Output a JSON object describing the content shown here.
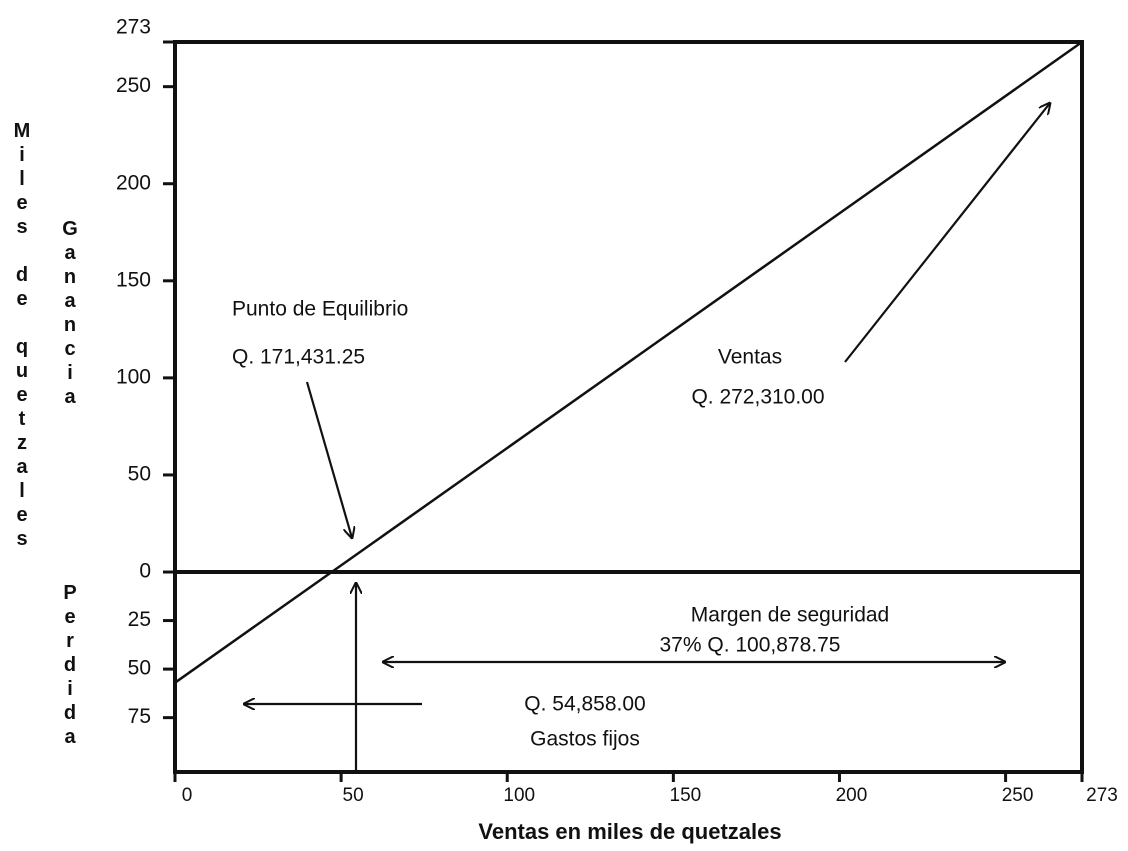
{
  "chart_data": {
    "type": "line",
    "x_label": "Ventas en miles de quetzales",
    "y_label": "Miles de quetzales",
    "y_upper_label": "Ganancia",
    "y_lower_label": "Perdida",
    "x": [
      0,
      273
    ],
    "values": [
      -57,
      273
    ],
    "color": "#111111",
    "xlim": [
      0,
      273
    ],
    "xticks": [
      0,
      50,
      100,
      150,
      200,
      250,
      273
    ],
    "ylim": [
      -103,
      273
    ],
    "yticks": [
      {
        "value": -75,
        "label": "75"
      },
      {
        "value": -50,
        "label": "50"
      },
      {
        "value": -25,
        "label": "25"
      },
      0,
      50,
      100,
      150,
      200,
      250,
      273
    ],
    "grid": false,
    "annotations": [
      "Punto de Equilibrio",
      "Q. 171,431.25",
      "Ventas",
      "Q. 272,310.00",
      "Margen de seguridad",
      "37% Q. 100,878.75",
      "Q. 54,858.00",
      "Gastos fijos"
    ]
  }
}
